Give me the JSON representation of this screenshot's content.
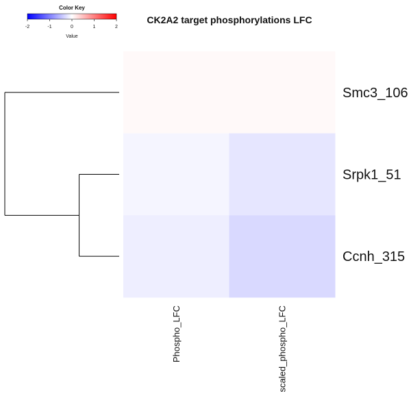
{
  "chart_data": {
    "type": "heatmap",
    "title": "CK2A2 target phosphorylations LFC",
    "rows": [
      "Smc3_106",
      "Srpk1_51",
      "Ccnh_315"
    ],
    "columns": [
      "Phospho_LFC",
      "scaled_phospho_LFC"
    ],
    "values": [
      [
        0.05,
        0.05
      ],
      [
        -0.08,
        -0.2
      ],
      [
        -0.13,
        -0.3
      ]
    ],
    "color_key": {
      "title": "Color Key",
      "label": "Value",
      "ticks": [
        "-2",
        "-1",
        "0",
        "1",
        "2"
      ],
      "range": [
        -2,
        2
      ],
      "low_color": "#0000ff",
      "mid_color": "#ffffff",
      "high_color": "#ff0000"
    },
    "row_dendrogram": {
      "merges": [
        {
          "members": [
            "Srpk1_51",
            "Ccnh_315"
          ],
          "height": 0.35
        },
        {
          "members": [
            "Smc3_106",
            "Srpk1_51",
            "Ccnh_315"
          ],
          "height": 1.0
        }
      ]
    },
    "legend_position": "top-left"
  }
}
